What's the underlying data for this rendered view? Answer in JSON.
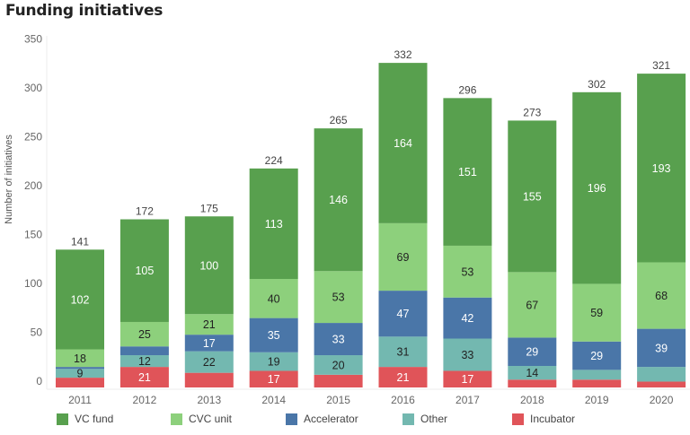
{
  "title": "Funding initiatives",
  "chart_data": {
    "type": "bar",
    "stacked": true,
    "title": "Funding initiatives",
    "xlabel": "",
    "ylabel": "Number of initiatives",
    "ylim": [
      0,
      350
    ],
    "yticks": [
      0,
      50,
      100,
      150,
      200,
      250,
      300,
      350
    ],
    "grid": false,
    "legend_position": "bottom",
    "categories": [
      "2011",
      "2012",
      "2013",
      "2014",
      "2015",
      "2016",
      "2017",
      "2018",
      "2019",
      "2020"
    ],
    "totals": [
      141,
      172,
      175,
      224,
      265,
      332,
      296,
      273,
      302,
      321
    ],
    "series": [
      {
        "name": "Incubator",
        "color": "#e05459",
        "label_color": "#ffffff",
        "values": [
          10,
          21,
          15,
          17,
          13,
          21,
          17,
          8,
          8,
          6
        ],
        "labels": [
          "",
          "21",
          "",
          "17",
          "",
          "21",
          "17",
          "",
          "",
          ""
        ]
      },
      {
        "name": "Other",
        "color": "#73b8b0",
        "label_color": "#222222",
        "values": [
          9,
          12,
          22,
          19,
          20,
          31,
          33,
          14,
          10,
          15
        ],
        "labels": [
          "9",
          "12",
          "22",
          "19",
          "20",
          "31",
          "33",
          "14",
          "",
          ""
        ]
      },
      {
        "name": "Accelerator",
        "color": "#4a76a8",
        "label_color": "#ffffff",
        "values": [
          2,
          9,
          17,
          35,
          33,
          47,
          42,
          29,
          29,
          39
        ],
        "labels": [
          "",
          "",
          "17",
          "35",
          "33",
          "47",
          "42",
          "29",
          "29",
          "39"
        ]
      },
      {
        "name": "CVC unit",
        "color": "#8dd07c",
        "label_color": "#222222",
        "values": [
          18,
          25,
          21,
          40,
          53,
          69,
          53,
          67,
          59,
          68
        ],
        "labels": [
          "18",
          "25",
          "21",
          "40",
          "53",
          "69",
          "53",
          "67",
          "59",
          "68"
        ]
      },
      {
        "name": "VC fund",
        "color": "#58a04e",
        "label_color": "#ffffff",
        "values": [
          102,
          105,
          100,
          113,
          146,
          164,
          151,
          155,
          196,
          193
        ],
        "labels": [
          "102",
          "105",
          "100",
          "113",
          "146",
          "164",
          "151",
          "155",
          "196",
          "193"
        ]
      }
    ],
    "legend_order": [
      "VC fund",
      "CVC unit",
      "Accelerator",
      "Other",
      "Incubator"
    ]
  }
}
